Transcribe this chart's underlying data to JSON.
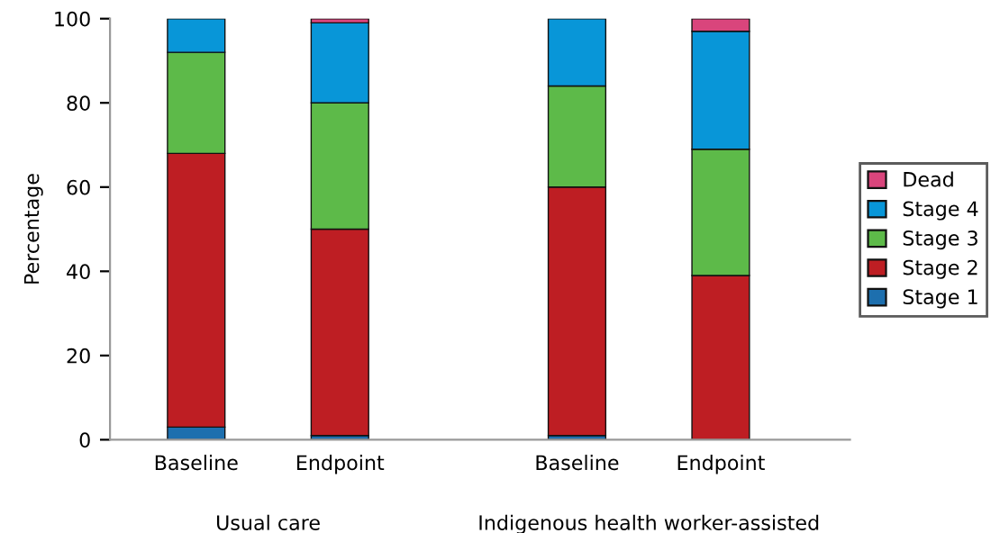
{
  "chart_data": {
    "type": "bar",
    "stacked": true,
    "ylabel": "Percentage",
    "categories": [
      "Baseline",
      "Endpoint",
      "Baseline",
      "Endpoint"
    ],
    "series": [
      {
        "name": "Stage 1",
        "color": "#1d6fae",
        "values": [
          3,
          1,
          1,
          0
        ]
      },
      {
        "name": "Stage 2",
        "color": "#be1e23",
        "values": [
          65,
          49,
          59,
          39
        ]
      },
      {
        "name": "Stage 3",
        "color": "#5dba49",
        "values": [
          24,
          30,
          24,
          30
        ]
      },
      {
        "name": "Stage 4",
        "color": "#0896d8",
        "values": [
          8,
          19,
          16,
          28
        ]
      },
      {
        "name": "Dead",
        "color": "#d9457c",
        "values": [
          0,
          1,
          0,
          3
        ]
      }
    ],
    "ylim": [
      0,
      100
    ],
    "yticks": [
      0,
      20,
      40,
      60,
      80,
      100
    ],
    "grid": false,
    "legend": "right",
    "annotations": [
      "Usual care",
      "Indigenous health worker-assisted"
    ]
  }
}
